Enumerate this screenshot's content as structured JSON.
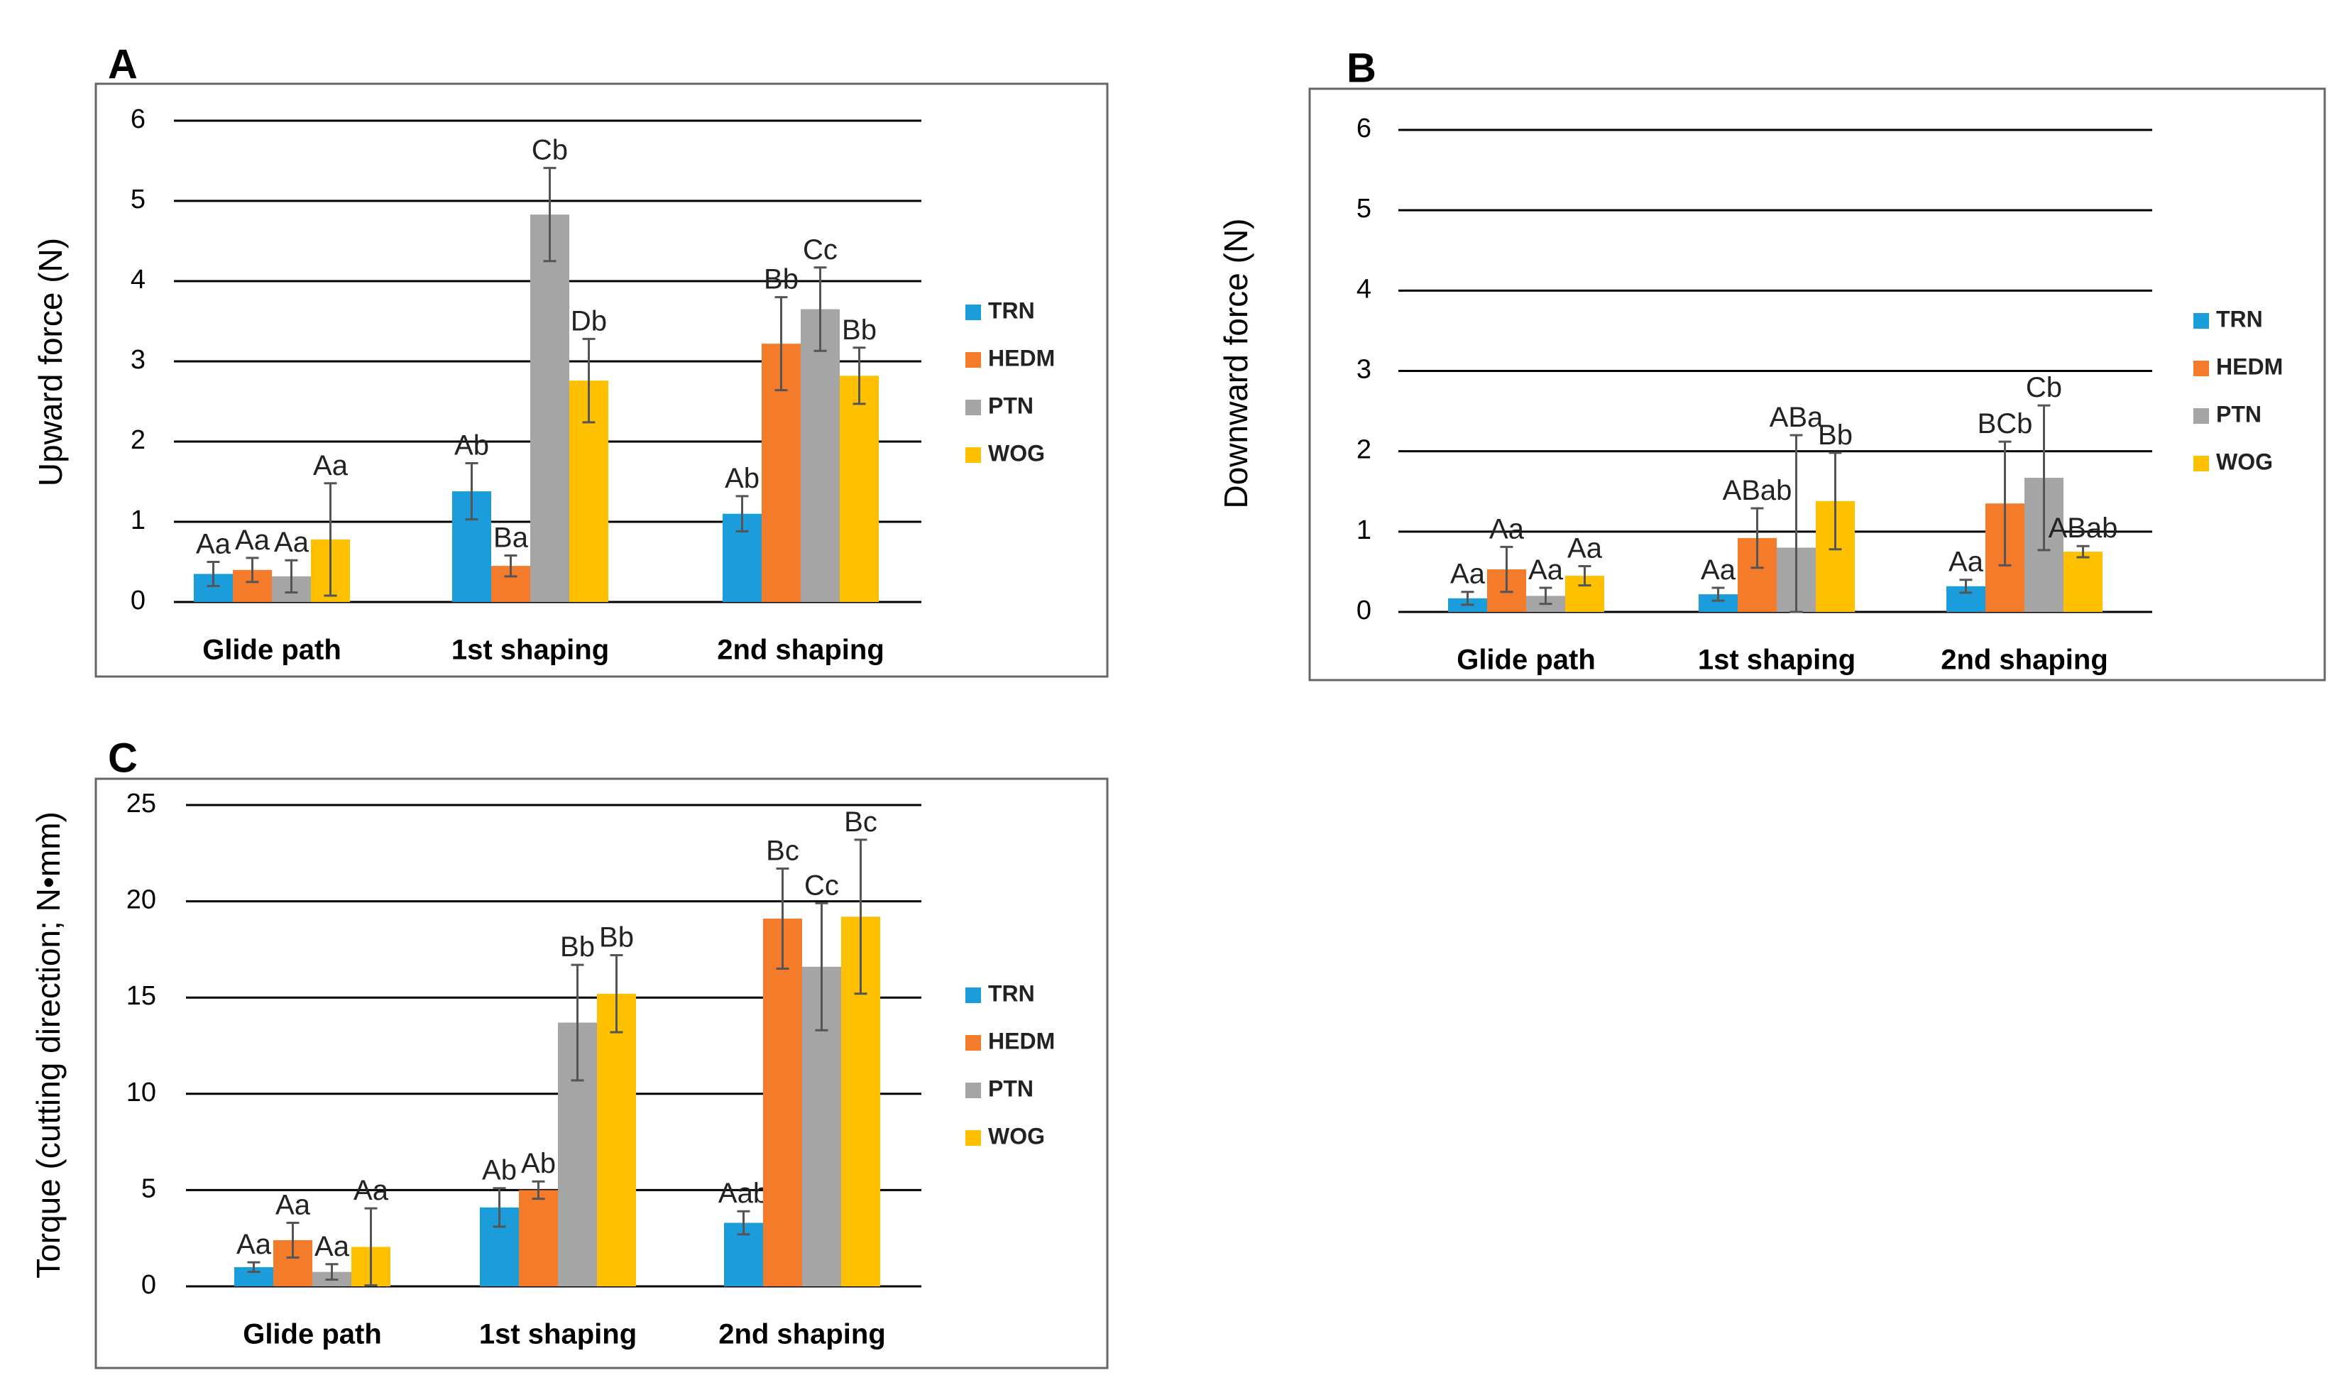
{
  "colors": {
    "TRN": "#1B9DDB",
    "HEDM": "#F47B2A",
    "PTN": "#A5A5A5",
    "WOG": "#FFC000",
    "grid": "#000000",
    "frame": "#666666",
    "error": "#555555"
  },
  "chart_data": [
    {
      "panel_label": "A",
      "type": "bar",
      "title": "",
      "xlabel": "",
      "ylabel": "Upward force (N)",
      "ylim": [
        0,
        6
      ],
      "yticks": [
        "0",
        "1",
        "2",
        "3",
        "4",
        "5",
        "6"
      ],
      "grid": true,
      "legend_position": "right",
      "categories": [
        "Glide path",
        "1st shaping",
        "2nd shaping"
      ],
      "series": [
        {
          "name": "TRN",
          "values": [
            0.35,
            1.38,
            1.1
          ],
          "errors": [
            0.15,
            0.35,
            0.22
          ],
          "annotations": [
            "Aa",
            "Ab",
            "Ab"
          ]
        },
        {
          "name": "HEDM",
          "values": [
            0.4,
            0.45,
            3.22
          ],
          "errors": [
            0.15,
            0.13,
            0.58
          ],
          "annotations": [
            "Aa",
            "Ba",
            "Bb"
          ]
        },
        {
          "name": "PTN",
          "values": [
            0.32,
            4.83,
            3.65
          ],
          "errors": [
            0.2,
            0.58,
            0.52
          ],
          "annotations": [
            "Aa",
            "Cb",
            "Cc"
          ]
        },
        {
          "name": "WOG",
          "values": [
            0.78,
            2.76,
            2.82
          ],
          "errors": [
            0.7,
            0.52,
            0.35
          ],
          "annotations": [
            "Aa",
            "Db",
            "Bb"
          ]
        }
      ]
    },
    {
      "panel_label": "B",
      "type": "bar",
      "title": "",
      "xlabel": "",
      "ylabel": "Downward force (N)",
      "ylim": [
        0,
        6
      ],
      "yticks": [
        "0",
        "1",
        "2",
        "3",
        "4",
        "5",
        "6"
      ],
      "grid": true,
      "legend_position": "right",
      "categories": [
        "Glide path",
        "1st shaping",
        "2nd shaping"
      ],
      "series": [
        {
          "name": "TRN",
          "values": [
            0.17,
            0.22,
            0.32
          ],
          "errors": [
            0.08,
            0.08,
            0.08
          ],
          "annotations": [
            "Aa",
            "Aa",
            "Aa"
          ]
        },
        {
          "name": "HEDM",
          "values": [
            0.53,
            0.92,
            1.35
          ],
          "errors": [
            0.28,
            0.37,
            0.77
          ],
          "annotations": [
            "Aa",
            "ABab",
            "BCb"
          ]
        },
        {
          "name": "PTN",
          "values": [
            0.2,
            0.8,
            1.67
          ],
          "errors": [
            0.1,
            1.4,
            0.9
          ],
          "annotations": [
            "Aa",
            "ABa",
            "Cb"
          ]
        },
        {
          "name": "WOG",
          "values": [
            0.45,
            1.38,
            0.75
          ],
          "errors": [
            0.12,
            0.6,
            0.07
          ],
          "annotations": [
            "Aa",
            "Bb",
            "ABab"
          ]
        }
      ]
    },
    {
      "panel_label": "C",
      "type": "bar",
      "title": "",
      "xlabel": "",
      "ylabel": "Torque (cutting direction; N•mm)",
      "ylim": [
        0,
        25
      ],
      "yticks": [
        "0",
        "5",
        "10",
        "15",
        "20",
        "25"
      ],
      "grid": true,
      "legend_position": "right",
      "categories": [
        "Glide path",
        "1st shaping",
        "2nd shaping"
      ],
      "series": [
        {
          "name": "TRN",
          "values": [
            1.0,
            4.1,
            3.3
          ],
          "errors": [
            0.25,
            1.0,
            0.6
          ],
          "annotations": [
            "Aa",
            "Ab",
            "Aab"
          ]
        },
        {
          "name": "HEDM",
          "values": [
            2.4,
            5.0,
            19.1
          ],
          "errors": [
            0.9,
            0.45,
            2.6
          ],
          "annotations": [
            "Aa",
            "Ab",
            "Bc"
          ]
        },
        {
          "name": "PTN",
          "values": [
            0.75,
            13.7,
            16.6
          ],
          "errors": [
            0.4,
            3.0,
            3.3
          ],
          "annotations": [
            "Aa",
            "Bb",
            "Cc"
          ]
        },
        {
          "name": "WOG",
          "values": [
            2.05,
            15.2,
            19.2
          ],
          "errors": [
            2.0,
            2.0,
            4.0
          ],
          "annotations": [
            "Aa",
            "Bb",
            "Bc"
          ]
        }
      ]
    }
  ]
}
